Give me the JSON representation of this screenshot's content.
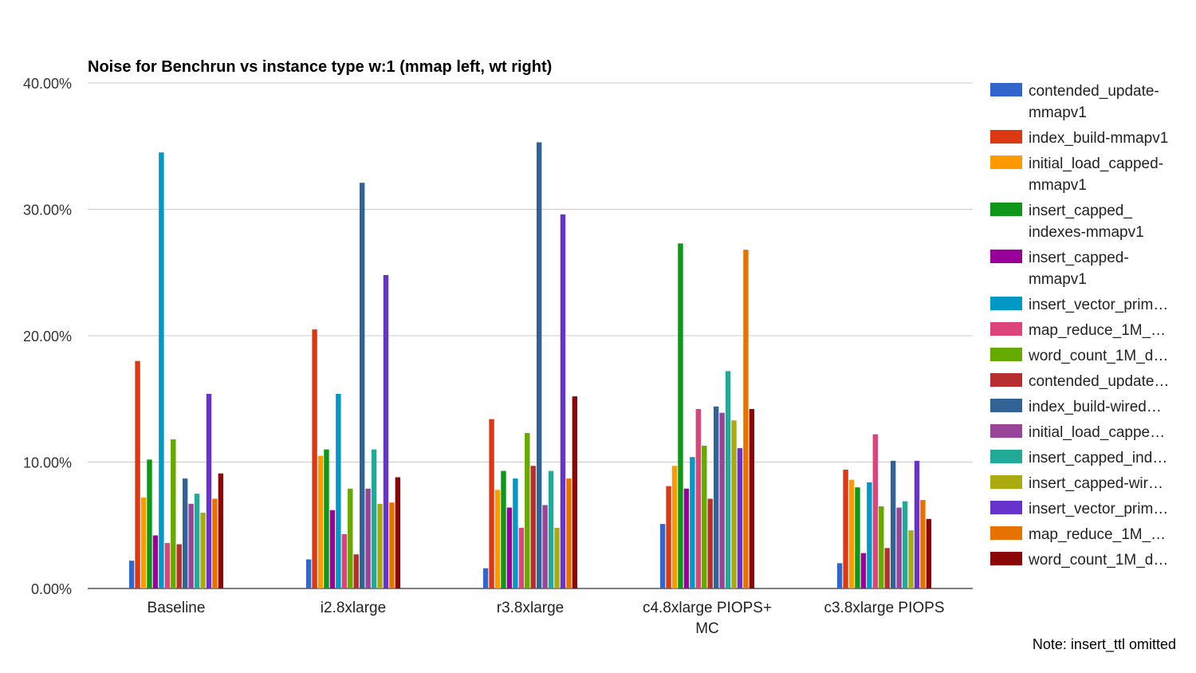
{
  "chart_data": {
    "type": "bar",
    "title": "Noise for Benchrun vs instance type w:1 (mmap left, wt right)",
    "xlabel": "",
    "ylabel": "",
    "ylim": [
      0,
      40
    ],
    "y_ticks": [
      "0.00%",
      "10.00%",
      "20.00%",
      "30.00%",
      "40.00%"
    ],
    "grid": true,
    "legend_position": "right",
    "categories": [
      [
        "Baseline"
      ],
      [
        "i2.8xlarge"
      ],
      [
        "r3.8xlarge"
      ],
      [
        "c4.8xlarge PIOPS+",
        "MC"
      ],
      [
        "c3.8xlarge PIOPS"
      ]
    ],
    "series": [
      {
        "name": "contended_update-mmapv1",
        "legend_lines": [
          "contended_update-",
          "mmapv1"
        ],
        "color": "#3366cc",
        "values": [
          2.2,
          2.3,
          1.6,
          5.1,
          2.0
        ]
      },
      {
        "name": "index_build-mmapv1",
        "legend_lines": [
          "index_build-mmapv1"
        ],
        "color": "#dc3912",
        "values": [
          18.0,
          20.5,
          13.4,
          8.1,
          9.4
        ]
      },
      {
        "name": "initial_load_capped-mmapv1",
        "legend_lines": [
          "initial_load_capped-",
          "mmapv1"
        ],
        "color": "#ff9900",
        "values": [
          7.2,
          10.5,
          7.8,
          9.7,
          8.6
        ]
      },
      {
        "name": "insert_capped_indexes-mmapv1",
        "legend_lines": [
          "insert_capped_",
          "indexes-mmapv1"
        ],
        "color": "#109618",
        "values": [
          10.2,
          11.0,
          9.3,
          27.3,
          8.0
        ]
      },
      {
        "name": "insert_capped-mmapv1",
        "legend_lines": [
          "insert_capped-",
          "mmapv1"
        ],
        "color": "#990099",
        "values": [
          4.2,
          6.2,
          6.4,
          7.9,
          2.8
        ]
      },
      {
        "name": "insert_vector_prim…",
        "legend_lines": [
          "insert_vector_prim…"
        ],
        "color": "#0099c6",
        "values": [
          34.5,
          15.4,
          8.7,
          10.4,
          8.4
        ]
      },
      {
        "name": "map_reduce_1M_…",
        "legend_lines": [
          "map_reduce_1M_…"
        ],
        "color": "#dd4477",
        "values": [
          3.6,
          4.3,
          4.8,
          14.2,
          12.2
        ]
      },
      {
        "name": "word_count_1M_d…",
        "legend_lines": [
          "word_count_1M_d…"
        ],
        "color": "#66aa00",
        "values": [
          11.8,
          7.9,
          12.3,
          11.3,
          6.5
        ]
      },
      {
        "name": "contended_update…",
        "legend_lines": [
          "contended_update…"
        ],
        "color": "#b82e2e",
        "values": [
          3.5,
          2.7,
          9.7,
          7.1,
          3.2
        ]
      },
      {
        "name": "index_build-wired…",
        "legend_lines": [
          "index_build-wired…"
        ],
        "color": "#316395",
        "values": [
          8.7,
          32.1,
          35.3,
          14.4,
          10.1
        ]
      },
      {
        "name": "initial_load_cappe…",
        "legend_lines": [
          "initial_load_cappe…"
        ],
        "color": "#994499",
        "values": [
          6.7,
          7.9,
          6.6,
          13.9,
          6.4
        ]
      },
      {
        "name": "insert_capped_ind…",
        "legend_lines": [
          "insert_capped_ind…"
        ],
        "color": "#22aa99",
        "values": [
          7.5,
          11.0,
          9.3,
          17.2,
          6.9
        ]
      },
      {
        "name": "insert_capped-wir…",
        "legend_lines": [
          "insert_capped-wir…"
        ],
        "color": "#aaaa11",
        "values": [
          6.0,
          6.7,
          4.8,
          13.3,
          4.6
        ]
      },
      {
        "name": "insert_vector_prim…",
        "legend_lines": [
          "insert_vector_prim…"
        ],
        "color": "#6633cc",
        "values": [
          15.4,
          24.8,
          29.6,
          11.1,
          10.1
        ]
      },
      {
        "name": "map_reduce_1M_…",
        "legend_lines": [
          "map_reduce_1M_…"
        ],
        "color": "#e67300",
        "values": [
          7.1,
          6.8,
          8.7,
          26.8,
          7.0
        ]
      },
      {
        "name": "word_count_1M_d…",
        "legend_lines": [
          "word_count_1M_d…"
        ],
        "color": "#8b0707",
        "values": [
          9.1,
          8.8,
          15.2,
          14.2,
          5.5
        ]
      }
    ],
    "note": "Note: insert_ttl omitted"
  }
}
